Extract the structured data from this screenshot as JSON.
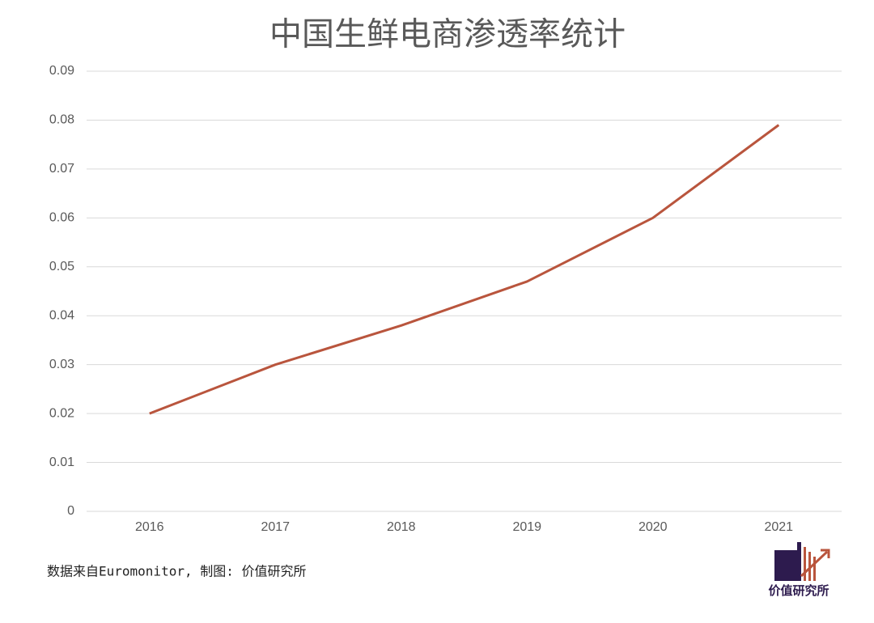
{
  "chart_data": {
    "type": "line",
    "title": "中国生鲜电商渗透率统计",
    "categories": [
      "2016",
      "2017",
      "2018",
      "2019",
      "2020",
      "2021"
    ],
    "values": [
      0.02,
      0.03,
      0.038,
      0.047,
      0.06,
      0.079
    ],
    "color": "#b9553d",
    "ylim": [
      0,
      0.09
    ],
    "yticks": [
      0,
      0.01,
      0.02,
      0.03,
      0.04,
      0.05,
      0.06,
      0.07,
      0.08,
      0.09
    ],
    "grid": true,
    "source": "数据来自Euromonitor, 制图: 价值研究所",
    "logo_text": "价值研究所"
  }
}
